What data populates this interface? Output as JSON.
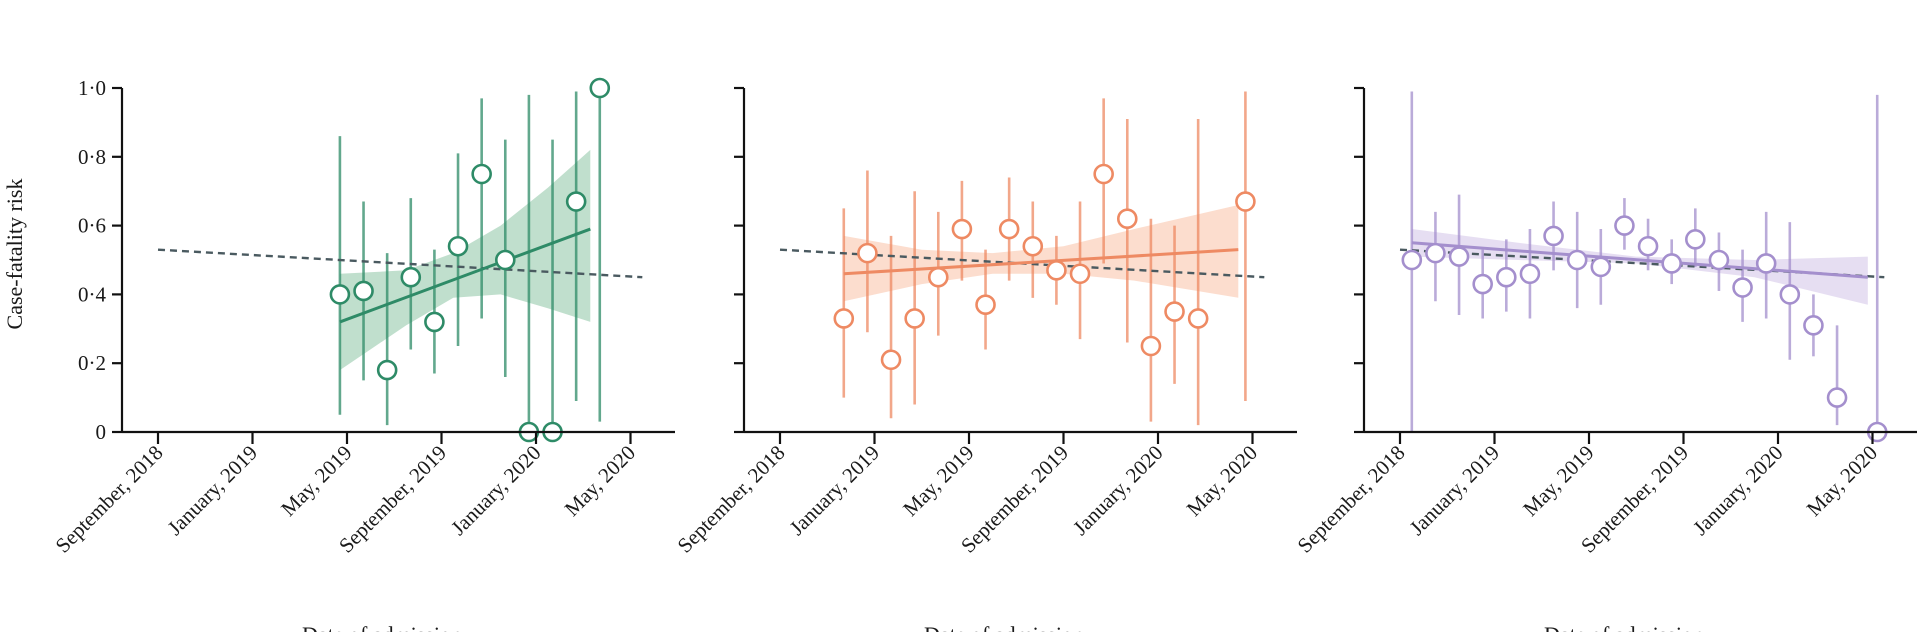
{
  "figure": {
    "ylabel": "Case-fatality risk",
    "xlabel": "Date of admission"
  },
  "chart_data": [
    {
      "type": "scatter",
      "color": "#2e8b67",
      "band_color": "#b5d9c4",
      "ylim": [
        0,
        1
      ],
      "yticks": [
        "0",
        "0·2",
        "0·4",
        "0·6",
        "0·8",
        "1·0"
      ],
      "xticks": [
        "September, 2018",
        "January, 2019",
        "May, 2019",
        "September, 2019",
        "January, 2020",
        "May, 2020"
      ],
      "xlabel": "Date of admission",
      "ylabel": "Case-fatality risk",
      "points": [
        {
          "x": 7.7,
          "y": 0.4,
          "lo": 0.05,
          "hi": 0.86
        },
        {
          "x": 8.7,
          "y": 0.41,
          "lo": 0.15,
          "hi": 0.67
        },
        {
          "x": 9.7,
          "y": 0.18,
          "lo": 0.02,
          "hi": 0.52
        },
        {
          "x": 10.7,
          "y": 0.45,
          "lo": 0.24,
          "hi": 0.68
        },
        {
          "x": 11.7,
          "y": 0.32,
          "lo": 0.17,
          "hi": 0.53
        },
        {
          "x": 12.7,
          "y": 0.54,
          "lo": 0.25,
          "hi": 0.81
        },
        {
          "x": 13.7,
          "y": 0.75,
          "lo": 0.33,
          "hi": 0.97
        },
        {
          "x": 14.7,
          "y": 0.5,
          "lo": 0.16,
          "hi": 0.85
        },
        {
          "x": 15.7,
          "y": 0.0,
          "lo": 0.0,
          "hi": 0.98
        },
        {
          "x": 16.7,
          "y": 0.0,
          "lo": 0.0,
          "hi": 0.85
        },
        {
          "x": 17.7,
          "y": 0.67,
          "lo": 0.09,
          "hi": 0.99
        },
        {
          "x": 18.7,
          "y": 1.0,
          "lo": 0.03,
          "hi": 1.0
        }
      ],
      "trend": {
        "x0": 7.7,
        "x1": 18.3,
        "y0": 0.32,
        "y1": 0.59
      },
      "band": [
        {
          "x": 7.7,
          "lo": 0.18,
          "hi": 0.46
        },
        {
          "x": 10.5,
          "lo": 0.31,
          "hi": 0.47
        },
        {
          "x": 12.5,
          "lo": 0.39,
          "hi": 0.52
        },
        {
          "x": 14.5,
          "lo": 0.4,
          "hi": 0.6
        },
        {
          "x": 16.5,
          "lo": 0.36,
          "hi": 0.71
        },
        {
          "x": 18.3,
          "lo": 0.32,
          "hi": 0.82
        }
      ],
      "reference": {
        "x0": 0,
        "x1": 20.5,
        "y0": 0.53,
        "y1": 0.45
      }
    },
    {
      "type": "scatter",
      "color": "#ee8a63",
      "band_color": "#fbd7c6",
      "ylim": [
        0,
        1
      ],
      "yticks": [
        "",
        "",
        "",
        "",
        "",
        ""
      ],
      "xticks": [
        "September, 2018",
        "January, 2019",
        "May, 2019",
        "September, 2019",
        "January, 2020",
        "May, 2020"
      ],
      "xlabel": "Date of admission",
      "ylabel": "",
      "points": [
        {
          "x": 2.7,
          "y": 0.33,
          "lo": 0.1,
          "hi": 0.65
        },
        {
          "x": 3.7,
          "y": 0.52,
          "lo": 0.29,
          "hi": 0.76
        },
        {
          "x": 4.7,
          "y": 0.21,
          "lo": 0.04,
          "hi": 0.57
        },
        {
          "x": 5.7,
          "y": 0.33,
          "lo": 0.08,
          "hi": 0.7
        },
        {
          "x": 6.7,
          "y": 0.45,
          "lo": 0.28,
          "hi": 0.64
        },
        {
          "x": 7.7,
          "y": 0.59,
          "lo": 0.44,
          "hi": 0.73
        },
        {
          "x": 8.7,
          "y": 0.37,
          "lo": 0.24,
          "hi": 0.53
        },
        {
          "x": 9.7,
          "y": 0.59,
          "lo": 0.44,
          "hi": 0.74
        },
        {
          "x": 10.7,
          "y": 0.54,
          "lo": 0.39,
          "hi": 0.67
        },
        {
          "x": 11.7,
          "y": 0.47,
          "lo": 0.37,
          "hi": 0.57
        },
        {
          "x": 12.7,
          "y": 0.46,
          "lo": 0.27,
          "hi": 0.67
        },
        {
          "x": 13.7,
          "y": 0.75,
          "lo": 0.49,
          "hi": 0.97
        },
        {
          "x": 14.7,
          "y": 0.62,
          "lo": 0.26,
          "hi": 0.91
        },
        {
          "x": 15.7,
          "y": 0.25,
          "lo": 0.03,
          "hi": 0.62
        },
        {
          "x": 16.7,
          "y": 0.35,
          "lo": 0.14,
          "hi": 0.6
        },
        {
          "x": 17.7,
          "y": 0.33,
          "lo": 0.02,
          "hi": 0.91
        },
        {
          "x": 19.7,
          "y": 0.67,
          "lo": 0.09,
          "hi": 0.99
        }
      ],
      "trend": {
        "x0": 2.7,
        "x1": 19.4,
        "y0": 0.46,
        "y1": 0.53
      },
      "band": [
        {
          "x": 2.7,
          "lo": 0.38,
          "hi": 0.57
        },
        {
          "x": 6.0,
          "lo": 0.43,
          "hi": 0.53
        },
        {
          "x": 9.0,
          "lo": 0.46,
          "hi": 0.52
        },
        {
          "x": 12.0,
          "lo": 0.46,
          "hi": 0.54
        },
        {
          "x": 15.0,
          "lo": 0.44,
          "hi": 0.59
        },
        {
          "x": 19.4,
          "lo": 0.39,
          "hi": 0.66
        }
      ],
      "reference": {
        "x0": 0,
        "x1": 20.5,
        "y0": 0.53,
        "y1": 0.45
      }
    },
    {
      "type": "scatter",
      "color": "#a48fcd",
      "band_color": "#e2d8f0",
      "ylim": [
        0,
        1
      ],
      "yticks": [
        "",
        "",
        "",
        "",
        "",
        ""
      ],
      "xticks": [
        "September, 2018",
        "January, 2019",
        "May, 2019",
        "September, 2019",
        "January, 2020",
        "May, 2020"
      ],
      "xlabel": "Date of admission",
      "ylabel": "",
      "points": [
        {
          "x": 0.5,
          "y": 0.5,
          "lo": 0.0,
          "hi": 0.99
        },
        {
          "x": 1.5,
          "y": 0.52,
          "lo": 0.38,
          "hi": 0.64
        },
        {
          "x": 2.5,
          "y": 0.51,
          "lo": 0.34,
          "hi": 0.69
        },
        {
          "x": 3.5,
          "y": 0.43,
          "lo": 0.33,
          "hi": 0.53
        },
        {
          "x": 4.5,
          "y": 0.45,
          "lo": 0.35,
          "hi": 0.56
        },
        {
          "x": 5.5,
          "y": 0.46,
          "lo": 0.33,
          "hi": 0.59
        },
        {
          "x": 6.5,
          "y": 0.57,
          "lo": 0.47,
          "hi": 0.67
        },
        {
          "x": 7.5,
          "y": 0.5,
          "lo": 0.36,
          "hi": 0.64
        },
        {
          "x": 8.5,
          "y": 0.48,
          "lo": 0.37,
          "hi": 0.59
        },
        {
          "x": 9.5,
          "y": 0.6,
          "lo": 0.53,
          "hi": 0.68
        },
        {
          "x": 10.5,
          "y": 0.54,
          "lo": 0.47,
          "hi": 0.62
        },
        {
          "x": 11.5,
          "y": 0.49,
          "lo": 0.43,
          "hi": 0.56
        },
        {
          "x": 12.5,
          "y": 0.56,
          "lo": 0.48,
          "hi": 0.65
        },
        {
          "x": 13.5,
          "y": 0.5,
          "lo": 0.41,
          "hi": 0.58
        },
        {
          "x": 14.5,
          "y": 0.42,
          "lo": 0.32,
          "hi": 0.53
        },
        {
          "x": 15.5,
          "y": 0.49,
          "lo": 0.33,
          "hi": 0.64
        },
        {
          "x": 16.5,
          "y": 0.4,
          "lo": 0.21,
          "hi": 0.61
        },
        {
          "x": 17.5,
          "y": 0.31,
          "lo": 0.22,
          "hi": 0.4
        },
        {
          "x": 18.5,
          "y": 0.1,
          "lo": 0.02,
          "hi": 0.31
        },
        {
          "x": 20.2,
          "y": 0.0,
          "lo": 0.0,
          "hi": 0.98
        }
      ],
      "trend": {
        "x0": 0.5,
        "x1": 19.8,
        "y0": 0.55,
        "y1": 0.45
      },
      "band": [
        {
          "x": 0.5,
          "lo": 0.51,
          "hi": 0.59
        },
        {
          "x": 5.0,
          "lo": 0.5,
          "hi": 0.55
        },
        {
          "x": 10.0,
          "lo": 0.49,
          "hi": 0.51
        },
        {
          "x": 15.0,
          "lo": 0.45,
          "hi": 0.5
        },
        {
          "x": 19.8,
          "lo": 0.37,
          "hi": 0.51
        }
      ],
      "reference": {
        "x0": 0,
        "x1": 20.5,
        "y0": 0.53,
        "y1": 0.45
      }
    }
  ]
}
